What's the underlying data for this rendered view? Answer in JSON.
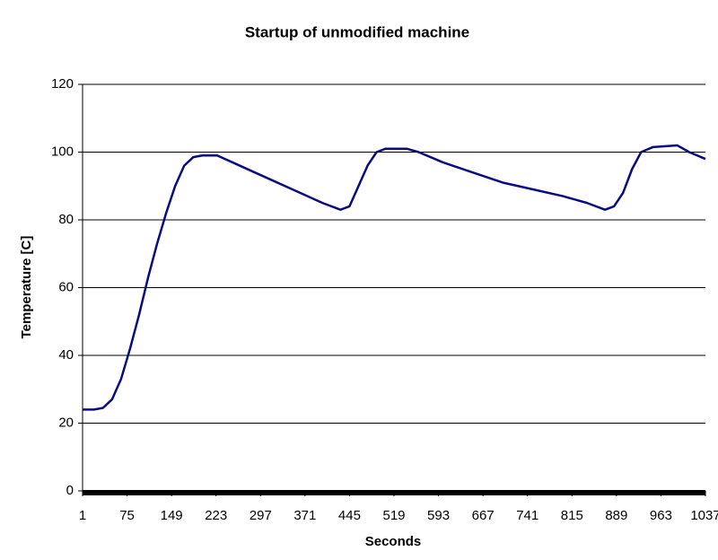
{
  "chart_data": {
    "type": "line",
    "title": "Startup of unmodified machine",
    "x_label": "Seconds",
    "y_label": "Temperature [C]",
    "x": [
      1,
      20,
      35,
      50,
      65,
      80,
      95,
      110,
      125,
      140,
      155,
      170,
      185,
      200,
      225,
      250,
      300,
      350,
      400,
      430,
      445,
      460,
      475,
      490,
      505,
      540,
      560,
      600,
      650,
      700,
      750,
      800,
      840,
      870,
      885,
      900,
      915,
      930,
      950,
      990,
      1010,
      1037
    ],
    "series": [
      {
        "name": "Temperature",
        "color": "#0a0a80",
        "values": [
          24,
          24,
          24.5,
          27,
          33,
          42,
          52,
          63,
          73,
          82,
          90,
          96,
          98.5,
          99,
          99,
          97,
          93,
          89,
          85,
          83,
          84,
          90,
          96,
          100,
          101,
          101,
          100,
          97,
          94,
          91,
          89,
          87,
          85,
          83,
          84,
          88,
          95,
          100,
          101.5,
          102,
          100,
          98
        ]
      }
    ],
    "xlim": [
      1,
      1037
    ],
    "xticks": [
      1,
      75,
      149,
      223,
      297,
      371,
      445,
      519,
      593,
      667,
      741,
      815,
      889,
      963,
      1037
    ],
    "ylim": [
      0,
      120
    ],
    "yticks": [
      0,
      20,
      40,
      60,
      80,
      100,
      120
    ],
    "grid": true
  }
}
